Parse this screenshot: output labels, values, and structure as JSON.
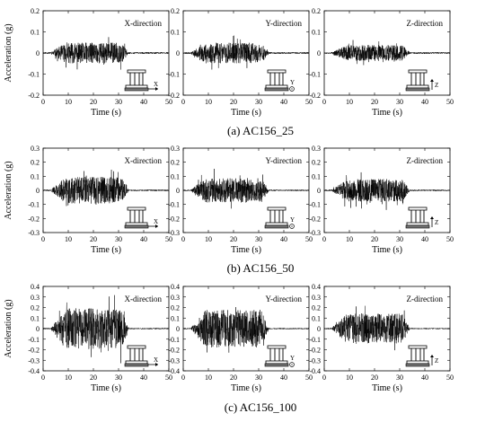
{
  "figure": {
    "y_axis_label": "Acceleration (g)",
    "x_axis_label": "Time (s)",
    "x_ticks": [
      "0",
      "10",
      "20",
      "30",
      "40",
      "50"
    ],
    "direction_labels": [
      "X-direction",
      "Y-direction",
      "Z-direction"
    ],
    "icon_axis_letters": [
      "X",
      "Y",
      "Z"
    ]
  },
  "rows": [
    {
      "caption": "(a) AC156_25",
      "y_ticks": [
        "0.2",
        "0.1",
        "0",
        "-0.1",
        "-0.2"
      ]
    },
    {
      "caption": "(b) AC156_50",
      "y_ticks": [
        "0.3",
        "0.2",
        "0.1",
        "0",
        "-0.1",
        "-0.2",
        "-0.3"
      ]
    },
    {
      "caption": "(c) AC156_100",
      "y_ticks": [
        "0.4",
        "0.3",
        "0.2",
        "0.1",
        "0",
        "-0.1",
        "-0.2",
        "-0.3",
        "-0.4"
      ]
    }
  ],
  "chart_data": [
    {
      "type": "line",
      "title": "X-direction",
      "row_caption": "(a) AC156_25",
      "xlabel": "Time (s)",
      "ylabel": "Acceleration (g)",
      "xlim": [
        0,
        50
      ],
      "ylim": [
        -0.2,
        0.2
      ],
      "strong_motion_window": [
        3,
        33
      ],
      "peak_amplitude": 0.06,
      "baseline_amplitude": 0.004,
      "seed": 11
    },
    {
      "type": "line",
      "title": "Y-direction",
      "row_caption": "(a) AC156_25",
      "xlabel": "Time (s)",
      "ylabel": "",
      "xlim": [
        0,
        50
      ],
      "ylim": [
        -0.2,
        0.2
      ],
      "strong_motion_window": [
        3,
        33
      ],
      "peak_amplitude": 0.06,
      "baseline_amplitude": 0.004,
      "seed": 23
    },
    {
      "type": "line",
      "title": "Z-direction",
      "row_caption": "(a) AC156_25",
      "xlabel": "Time (s)",
      "ylabel": "",
      "xlim": [
        0,
        50
      ],
      "ylim": [
        -0.2,
        0.2
      ],
      "strong_motion_window": [
        3,
        33
      ],
      "peak_amplitude": 0.045,
      "baseline_amplitude": 0.004,
      "seed": 37
    },
    {
      "type": "line",
      "title": "X-direction",
      "row_caption": "(b) AC156_50",
      "xlabel": "Time (s)",
      "ylabel": "Acceleration (g)",
      "xlim": [
        0,
        50
      ],
      "ylim": [
        -0.3,
        0.3
      ],
      "strong_motion_window": [
        3,
        33
      ],
      "peak_amplitude": 0.12,
      "baseline_amplitude": 0.005,
      "seed": 41
    },
    {
      "type": "line",
      "title": "Y-direction",
      "row_caption": "(b) AC156_50",
      "xlabel": "Time (s)",
      "ylabel": "",
      "xlim": [
        0,
        50
      ],
      "ylim": [
        -0.3,
        0.3
      ],
      "strong_motion_window": [
        3,
        33
      ],
      "peak_amplitude": 0.11,
      "baseline_amplitude": 0.005,
      "seed": 53
    },
    {
      "type": "line",
      "title": "Z-direction",
      "row_caption": "(b) AC156_50",
      "xlabel": "Time (s)",
      "ylabel": "",
      "xlim": [
        0,
        50
      ],
      "ylim": [
        -0.3,
        0.3
      ],
      "strong_motion_window": [
        3,
        33
      ],
      "peak_amplitude": 0.1,
      "baseline_amplitude": 0.005,
      "seed": 67
    },
    {
      "type": "line",
      "title": "X-direction",
      "row_caption": "(c) AC156_100",
      "xlabel": "Time (s)",
      "ylabel": "Acceleration (g)",
      "xlim": [
        0,
        50
      ],
      "ylim": [
        -0.4,
        0.4
      ],
      "strong_motion_window": [
        3,
        33
      ],
      "peak_amplitude": 0.25,
      "baseline_amplitude": 0.006,
      "seed": 71
    },
    {
      "type": "line",
      "title": "Y-direction",
      "row_caption": "(c) AC156_100",
      "xlabel": "Time (s)",
      "ylabel": "",
      "xlim": [
        0,
        50
      ],
      "ylim": [
        -0.4,
        0.4
      ],
      "strong_motion_window": [
        3,
        33
      ],
      "peak_amplitude": 0.23,
      "baseline_amplitude": 0.006,
      "seed": 83
    },
    {
      "type": "line",
      "title": "Z-direction",
      "row_caption": "(c) AC156_100",
      "xlabel": "Time (s)",
      "ylabel": "",
      "xlim": [
        0,
        50
      ],
      "ylim": [
        -0.4,
        0.4
      ],
      "strong_motion_window": [
        3,
        33
      ],
      "peak_amplitude": 0.18,
      "baseline_amplitude": 0.006,
      "seed": 97
    }
  ]
}
